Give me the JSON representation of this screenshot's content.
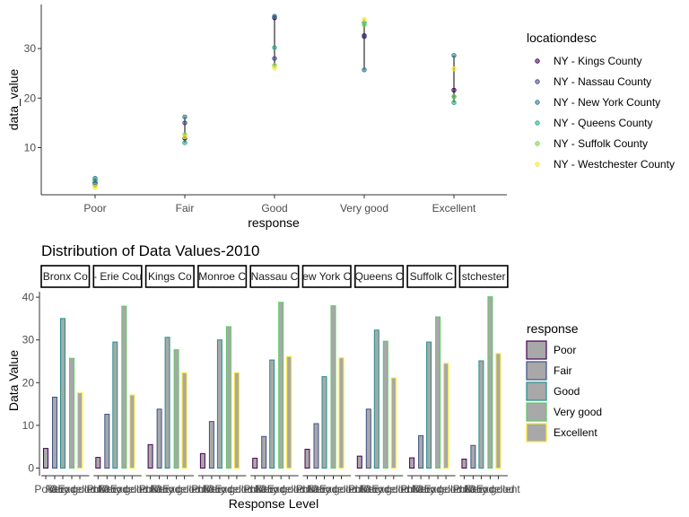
{
  "chart_data": [
    {
      "type": "scatter",
      "xlabel": "response",
      "ylabel": "data_value",
      "categories": [
        "Poor",
        "Fair",
        "Good",
        "Very good",
        "Excellent"
      ],
      "yticks": [
        10,
        20,
        30
      ],
      "ylim": [
        0,
        38
      ],
      "legend": {
        "title": "locationdesc",
        "placement": "right",
        "entries": [
          "NY - Kings County",
          "NY - Nassau County",
          "NY - New York County",
          "NY - Queens County",
          "NY - Suffolk County",
          "NY - Westchester County"
        ]
      },
      "colors": [
        "#440154",
        "#414487",
        "#2a788e",
        "#22a884",
        "#7ad151",
        "#fde725"
      ],
      "series": [
        {
          "name": "NY - Kings County",
          "values": [
            2.9,
            11.9,
            36.2,
            32.6,
            21.6
          ]
        },
        {
          "name": "NY - Nassau County",
          "values": [
            2.6,
            15.0,
            28.0,
            32.4,
            20.3
          ]
        },
        {
          "name": "NY - New York County",
          "values": [
            3.8,
            16.2,
            36.5,
            25.7,
            28.6
          ]
        },
        {
          "name": "NY - Queens County",
          "values": [
            3.4,
            11.0,
            30.2,
            35.2,
            19.1
          ]
        },
        {
          "name": "NY - Suffolk County",
          "values": [
            2.4,
            12.6,
            26.6,
            34.8,
            20.3
          ]
        },
        {
          "name": "NY - Westchester County",
          "values": [
            2.0,
            12.2,
            26.1,
            35.9,
            25.9
          ]
        }
      ],
      "grid": false
    },
    {
      "type": "bar",
      "title": "Distribution of Data Values-2010",
      "xlabel": "Response Level",
      "ylabel": "Data Value",
      "categories": [
        "Poor",
        "Fair",
        "Good",
        "Very good",
        "Excellent"
      ],
      "facets": [
        "Bronx County",
        "Erie County",
        "Kings County",
        "Monroe County",
        "Nassau County",
        "New York County",
        "Queens County",
        "Suffolk County",
        "Westchester County"
      ],
      "facet_label_visible": [
        "Bronx Co",
        "- Erie Cou",
        "Kings Co",
        "Monroe C",
        "Nassau C",
        "ew York C",
        "Queens C",
        "Suffolk C",
        "stchester"
      ],
      "yticks": [
        0,
        10,
        20,
        30,
        40
      ],
      "ylim": [
        0,
        41
      ],
      "legend": {
        "title": "response",
        "placement": "right",
        "entries": [
          "Poor",
          "Fair",
          "Good",
          "Very good",
          "Excellent"
        ]
      },
      "colors": [
        "#440154",
        "#3b528b",
        "#21908c",
        "#5dc863",
        "#fde725"
      ],
      "fill": "#a8a8a8",
      "grid": false,
      "values": [
        [
          4.6,
          16.6,
          35.0,
          25.7,
          17.6
        ],
        [
          2.5,
          12.6,
          29.5,
          37.9,
          17.1
        ],
        [
          5.5,
          13.8,
          30.6,
          27.7,
          22.3
        ],
        [
          3.4,
          10.9,
          30.0,
          33.1,
          22.3
        ],
        [
          2.3,
          7.4,
          25.3,
          38.8,
          26.1
        ],
        [
          4.4,
          10.4,
          21.4,
          38.0,
          25.8
        ],
        [
          2.8,
          13.8,
          32.3,
          29.7,
          21.1
        ],
        [
          2.4,
          7.6,
          29.5,
          35.4,
          24.5
        ],
        [
          2.1,
          5.3,
          25.1,
          40.1,
          26.8
        ]
      ]
    }
  ]
}
